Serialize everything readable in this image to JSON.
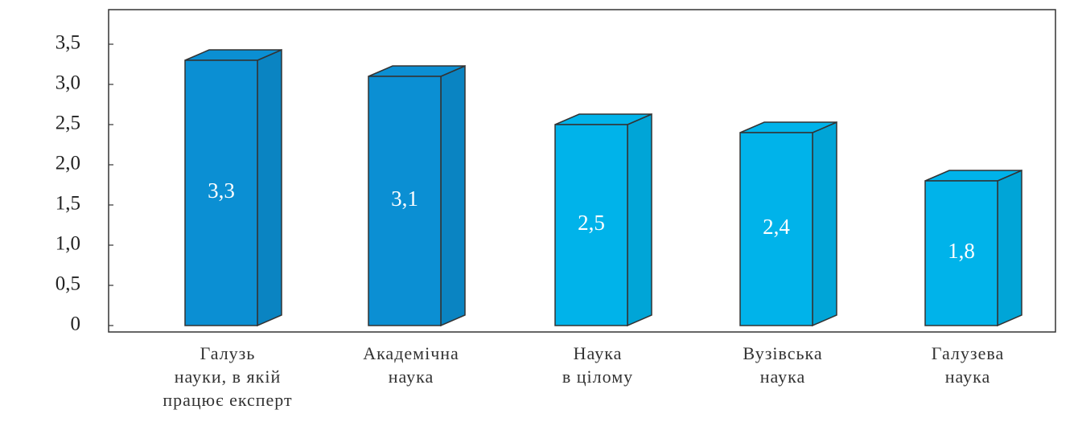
{
  "chart_data": {
    "type": "bar3d",
    "categories": [
      "Галузь\nнауки, в якій\nпрацює експерт",
      "Академічна\nнаука",
      "Наука\nв цілому",
      "Вузівська\nнаука",
      "Галузева\nнаука"
    ],
    "values": [
      3.3,
      3.1,
      2.5,
      2.4,
      1.8
    ],
    "value_labels": [
      "3,3",
      "3,1",
      "2,5",
      "2,4",
      "1,8"
    ],
    "colors": [
      "#0b8fd3",
      "#0b8fd3",
      "#00b3ea",
      "#00b3ea",
      "#00b3ea"
    ],
    "ylim": [
      0,
      3.5
    ],
    "yticks": [
      0,
      {
        "value": 0.5,
        "label": "0,5"
      },
      {
        "value": 1,
        "label": "1,0"
      },
      {
        "value": 1.5,
        "label": "1,5"
      },
      {
        "value": 2,
        "label": "2,0"
      },
      {
        "value": 2.5,
        "label": "2,5"
      },
      {
        "value": 3,
        "label": "3,0"
      },
      {
        "value": 3.5,
        "label": "3,5"
      }
    ]
  }
}
